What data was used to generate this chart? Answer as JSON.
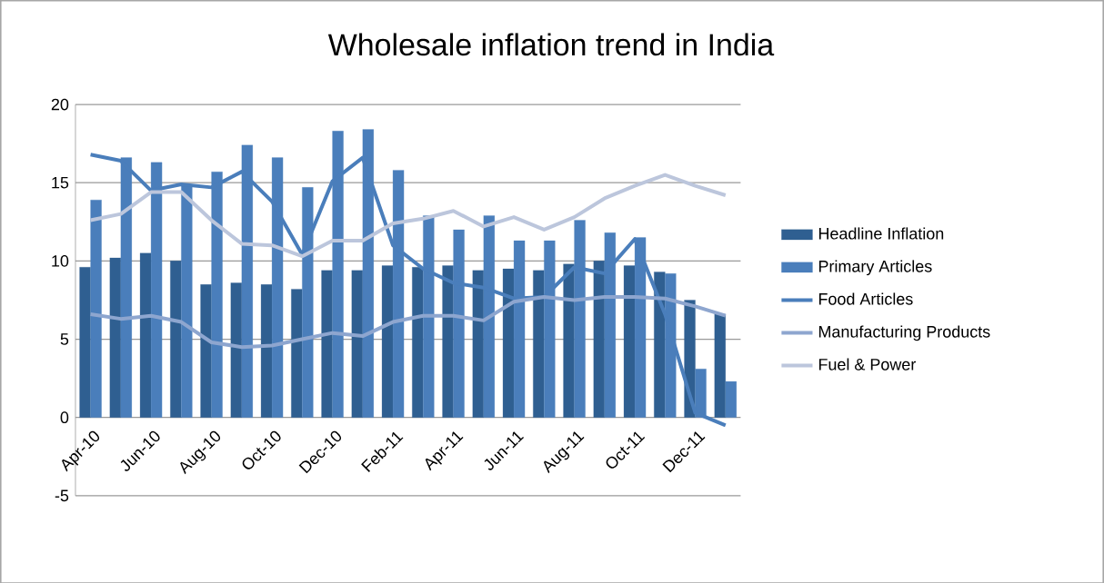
{
  "chart_data": {
    "type": "bar",
    "title": "Wholesale inflation trend in India",
    "categories": [
      "Apr-10",
      null,
      "Jun-10",
      null,
      "Aug-10",
      null,
      "Oct-10",
      null,
      "Dec-10",
      null,
      "Feb-11",
      null,
      "Apr-11",
      null,
      "Jun-11",
      null,
      "Aug-11",
      null,
      "Oct-11",
      null,
      "Dec-11",
      null
    ],
    "series": [
      {
        "name": "Headline Inflation",
        "color": "#2f5f91",
        "values": [
          9.6,
          10.2,
          10.5,
          10.0,
          8.5,
          8.6,
          8.5,
          8.2,
          9.4,
          9.4,
          9.7,
          9.6,
          9.7,
          9.4,
          9.5,
          9.4,
          9.8,
          10.0,
          9.7,
          9.3,
          7.5,
          6.6
        ]
      },
      {
        "name": "Primary Articles",
        "color": "#4a7ebb",
        "values": [
          13.9,
          16.6,
          16.3,
          14.8,
          15.7,
          17.4,
          16.6,
          14.7,
          18.3,
          18.4,
          15.8,
          12.9,
          12.0,
          12.9,
          11.3,
          11.3,
          12.6,
          11.8,
          11.5,
          9.2,
          3.1,
          2.3
        ]
      },
      {
        "name": "Food Articles",
        "type": "line",
        "color": "#4a7ebb",
        "values": [
          16.8,
          16.4,
          14.5,
          14.9,
          14.7,
          15.7,
          13.8,
          10.4,
          15.1,
          16.6,
          11.0,
          9.5,
          8.6,
          8.3,
          7.6,
          7.7,
          9.6,
          9.2,
          11.4,
          6.6,
          0.3,
          -0.5
        ]
      },
      {
        "name": "Manufacturing Products",
        "type": "line",
        "color": "#8ea6cf",
        "values": [
          6.6,
          6.3,
          6.5,
          6.1,
          4.8,
          4.5,
          4.6,
          5.0,
          5.4,
          5.2,
          6.1,
          6.5,
          6.5,
          6.2,
          7.4,
          7.7,
          7.5,
          7.7,
          7.7,
          7.6,
          7.1,
          6.5
        ]
      },
      {
        "name": "Fuel & Power",
        "type": "line",
        "color": "#bcc6dc",
        "values": [
          12.6,
          13.0,
          14.4,
          14.4,
          12.6,
          11.1,
          11.0,
          10.3,
          11.3,
          11.3,
          12.4,
          12.7,
          13.2,
          12.2,
          12.8,
          12.0,
          12.8,
          14.0,
          14.8,
          15.5,
          14.8,
          14.2
        ]
      }
    ],
    "ylim": [
      -5,
      20
    ],
    "yticks": [
      -5,
      0,
      5,
      10,
      15,
      20
    ],
    "grid": "y",
    "legend": "right"
  }
}
